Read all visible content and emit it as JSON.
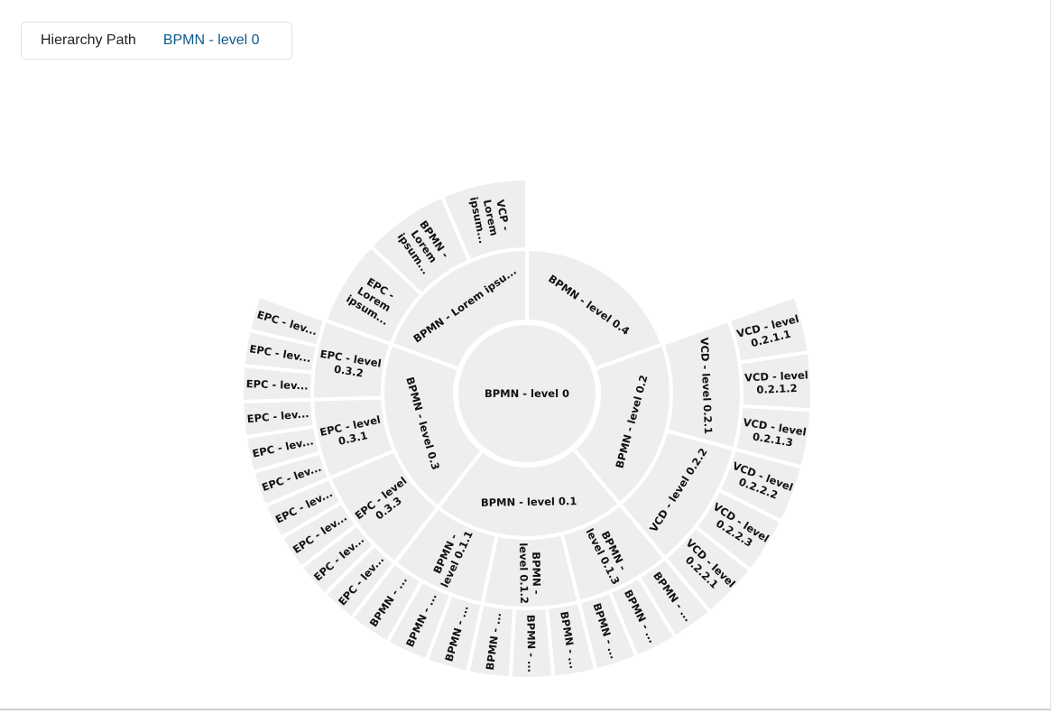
{
  "breadcrumb": {
    "label": "Hierarchy Path",
    "value": "BPMN - level 0"
  },
  "colors": {
    "segment_fill": "#eeeeee",
    "gap": "#ffffff",
    "link": "#0e5a8a"
  },
  "sunburst": {
    "root": {
      "lines": [
        "BPMN - level 0"
      ],
      "children": [
        {
          "lines": [
            "BPMN - level 0.4"
          ],
          "children": []
        },
        {
          "lines": [
            "BPMN - level 0.2"
          ],
          "children": [
            {
              "lines": [
                "VCD - level 0.2.1"
              ],
              "children": [
                {
                  "lines": [
                    "VCD - level",
                    "0.2.1.1"
                  ]
                },
                {
                  "lines": [
                    "VCD - level",
                    "0.2.1.2"
                  ]
                },
                {
                  "lines": [
                    "VCD - level",
                    "0.2.1.3"
                  ]
                }
              ]
            },
            {
              "lines": [
                "VCD - level 0.2.2"
              ],
              "children": [
                {
                  "lines": [
                    "VCD - level",
                    "0.2.2.2"
                  ]
                },
                {
                  "lines": [
                    "VCD - level",
                    "0.2.2.3"
                  ]
                },
                {
                  "lines": [
                    "VCD - level",
                    "0.2.2.1"
                  ]
                }
              ]
            }
          ]
        },
        {
          "lines": [
            "BPMN - level 0.1"
          ],
          "children": [
            {
              "lines": [
                "BPMN -",
                "level 0.1.3"
              ],
              "children": [
                {
                  "lines": [
                    "BPMN - ..."
                  ]
                },
                {
                  "lines": [
                    "BPMN - ..."
                  ]
                },
                {
                  "lines": [
                    "BPMN - ..."
                  ]
                }
              ]
            },
            {
              "lines": [
                "BPMN -",
                "level 0.1.2"
              ],
              "children": [
                {
                  "lines": [
                    "BPMN - ..."
                  ]
                },
                {
                  "lines": [
                    "BPMN - ..."
                  ]
                },
                {
                  "lines": [
                    "BPMN - ..."
                  ]
                }
              ]
            },
            {
              "lines": [
                "BPMN -",
                "level 0.1.1"
              ],
              "children": [
                {
                  "lines": [
                    "BPMN - ..."
                  ]
                },
                {
                  "lines": [
                    "BPMN - ..."
                  ]
                },
                {
                  "lines": [
                    "BPMN - ..."
                  ]
                }
              ]
            }
          ]
        },
        {
          "lines": [
            "BPMN - level 0.3"
          ],
          "children": [
            {
              "lines": [
                "EPC - level",
                "0.3.3"
              ],
              "children": [
                {
                  "lines": [
                    "EPC - lev..."
                  ]
                },
                {
                  "lines": [
                    "EPC - lev..."
                  ]
                },
                {
                  "lines": [
                    "EPC - lev..."
                  ]
                },
                {
                  "lines": [
                    "EPC - lev..."
                  ]
                }
              ]
            },
            {
              "lines": [
                "EPC - level",
                "0.3.1"
              ],
              "children": [
                {
                  "lines": [
                    "EPC - lev..."
                  ]
                },
                {
                  "lines": [
                    "EPC - lev..."
                  ]
                },
                {
                  "lines": [
                    "EPC - lev..."
                  ]
                }
              ]
            },
            {
              "lines": [
                "EPC - level",
                "0.3.2"
              ],
              "children": [
                {
                  "lines": [
                    "EPC - lev..."
                  ]
                },
                {
                  "lines": [
                    "EPC - lev..."
                  ]
                },
                {
                  "lines": [
                    "EPC - lev..."
                  ]
                }
              ]
            }
          ]
        },
        {
          "lines": [
            "BPMN - Lorem ipsu..."
          ],
          "children": [
            {
              "lines": [
                "EPC -",
                "Lorem",
                "ipsum..."
              ]
            },
            {
              "lines": [
                "BPMN -",
                "Lorem",
                "ipsum..."
              ]
            },
            {
              "lines": [
                "VCP -",
                "Lorem",
                "ipsum..."
              ]
            }
          ]
        }
      ]
    }
  }
}
